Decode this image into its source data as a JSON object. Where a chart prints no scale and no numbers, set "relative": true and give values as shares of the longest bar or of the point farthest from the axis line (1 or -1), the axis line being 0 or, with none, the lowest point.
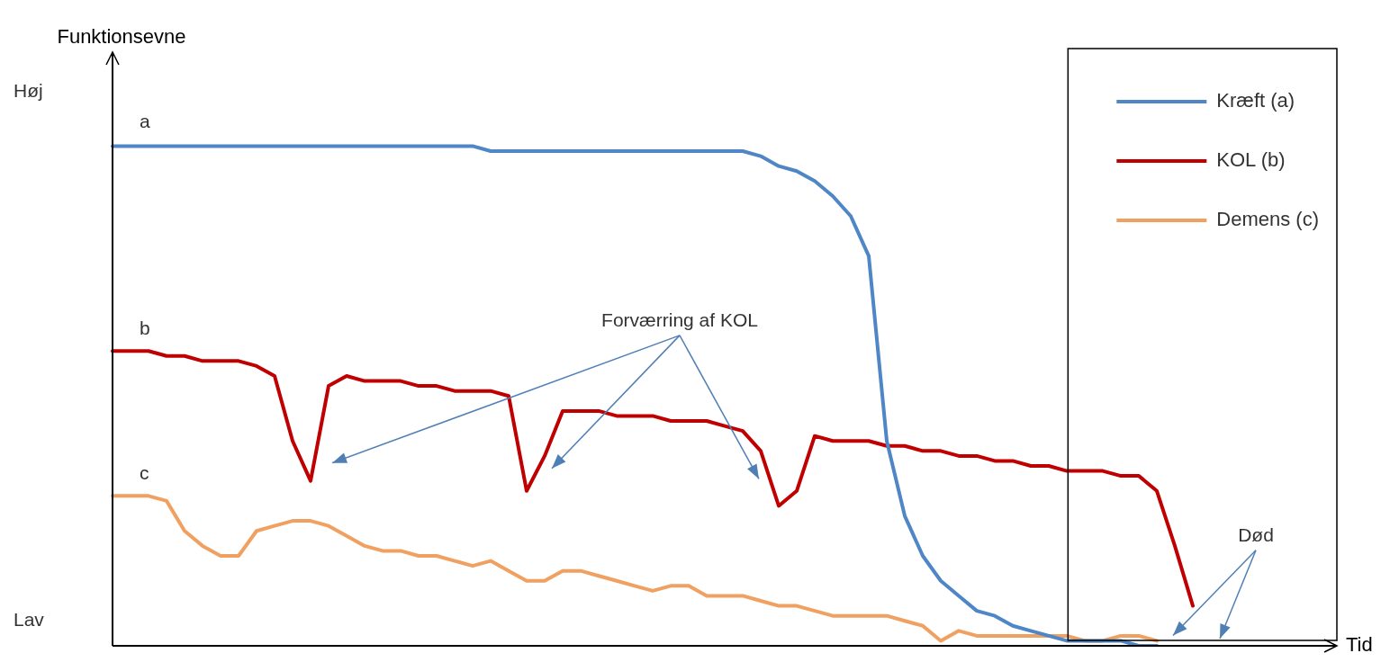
{
  "chart_data": {
    "type": "line",
    "relative": true,
    "xlabel": "Tid",
    "ylabel": "Funktionsevne",
    "legend": "top right",
    "marker": "none",
    "line_style": "solid",
    "categories": [
      null,
      null,
      null,
      null,
      null,
      null,
      null,
      null,
      null,
      null,
      null,
      null,
      null,
      null,
      null,
      null,
      null,
      null,
      null,
      null,
      null,
      null,
      null,
      null,
      null,
      null,
      null,
      null,
      null,
      null,
      null,
      null,
      null,
      null,
      null,
      null,
      null,
      null,
      null,
      null,
      null,
      null,
      null,
      null,
      null,
      null,
      null,
      null,
      null,
      null,
      null,
      null,
      null,
      null,
      null,
      null,
      null,
      null,
      null,
      null,
      null,
      null,
      null,
      null,
      null,
      null,
      null,
      null
    ],
    "series": [
      {
        "name": "Kræft (a)",
        "color": "#4f86c6",
        "values": [
          1,
          1,
          1,
          1,
          1,
          1,
          1,
          1,
          1,
          1,
          1,
          1,
          1,
          1,
          1,
          1,
          1,
          1,
          1,
          1,
          1,
          0.99,
          0.99,
          0.99,
          0.99,
          0.99,
          0.99,
          0.99,
          0.99,
          0.99,
          0.99,
          0.99,
          0.99,
          0.99,
          0.99,
          0.99,
          0.98,
          0.96,
          0.95,
          0.93,
          0.9,
          0.86,
          0.78,
          0.41,
          0.26,
          0.18,
          0.13,
          0.1,
          0.07,
          0.06,
          0.04,
          0.03,
          0.02,
          0.01,
          0.01,
          0.01,
          0.01,
          0,
          0,
          null,
          null,
          null,
          null,
          null,
          null,
          null,
          null,
          null
        ]
      },
      {
        "name": "KOL (b)",
        "color": "#c00000",
        "values": [
          0.59,
          0.59,
          0.59,
          0.58,
          0.58,
          0.57,
          0.57,
          0.57,
          0.56,
          0.54,
          0.41,
          0.33,
          0.52,
          0.54,
          0.53,
          0.53,
          0.53,
          0.52,
          0.52,
          0.51,
          0.51,
          0.51,
          0.5,
          0.31,
          0.38,
          0.47,
          0.47,
          0.47,
          0.46,
          0.46,
          0.46,
          0.45,
          0.45,
          0.45,
          0.44,
          0.43,
          0.39,
          0.28,
          0.31,
          0.42,
          0.41,
          0.41,
          0.41,
          0.4,
          0.4,
          0.39,
          0.39,
          0.38,
          0.38,
          0.37,
          0.37,
          0.36,
          0.36,
          0.35,
          0.35,
          0.35,
          0.34,
          0.34,
          0.31,
          0.2,
          0.08,
          null,
          null,
          null,
          null,
          null,
          null,
          null
        ]
      },
      {
        "name": "Demens (c)",
        "color": "#f0a060",
        "values": [
          0.3,
          0.3,
          0.3,
          0.29,
          0.23,
          0.2,
          0.18,
          0.18,
          0.23,
          0.24,
          0.25,
          0.25,
          0.24,
          0.22,
          0.2,
          0.19,
          0.19,
          0.18,
          0.18,
          0.17,
          0.16,
          0.17,
          0.15,
          0.13,
          0.13,
          0.15,
          0.15,
          0.14,
          0.13,
          0.12,
          0.11,
          0.12,
          0.12,
          0.1,
          0.1,
          0.1,
          0.09,
          0.08,
          0.08,
          0.07,
          0.06,
          0.06,
          0.06,
          0.06,
          0.05,
          0.04,
          0.01,
          0.03,
          0.02,
          0.02,
          0.02,
          0.02,
          0.02,
          0.02,
          0.01,
          0.01,
          0.02,
          0.02,
          0.01,
          null,
          null,
          null,
          null,
          null,
          null,
          null,
          null,
          null
        ]
      }
    ],
    "annotations": [
      "Høj",
      "Lav",
      "a",
      "b",
      "c",
      "Forværring af KOL",
      "Død"
    ]
  }
}
